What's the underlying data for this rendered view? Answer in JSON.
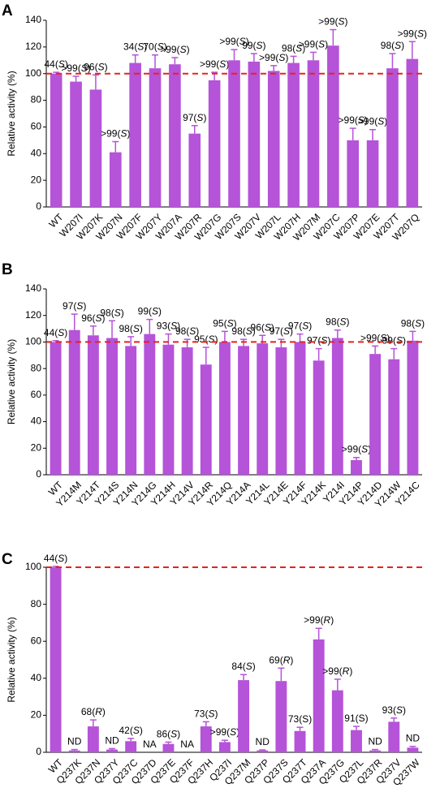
{
  "chart_data": [
    {
      "type": "bar",
      "panel_letter": "A",
      "ylabel": "Relative activity (%)",
      "ylim": [
        0,
        140
      ],
      "yticks": [
        0,
        20,
        40,
        60,
        80,
        100,
        120,
        140
      ],
      "reference_line": 100,
      "bar_color": "#b553d9",
      "reference_color": "#e8221b",
      "categories": [
        "WT",
        "W207I",
        "W207K",
        "W207N",
        "W207F",
        "W207Y",
        "W207A",
        "W207R",
        "W207G",
        "W207S",
        "W207V",
        "W207L",
        "W207H",
        "W207M",
        "W207C",
        "W207P",
        "W207E",
        "W207T",
        "W207Q"
      ],
      "values": [
        100,
        94,
        88,
        41,
        108,
        104,
        107,
        55,
        95,
        110,
        109,
        102,
        108,
        110,
        121,
        50,
        50,
        104,
        111
      ],
      "errors": [
        1,
        4,
        11,
        8,
        6,
        10,
        5,
        6,
        6,
        8,
        6,
        4,
        5,
        6,
        12,
        9,
        8,
        11,
        13
      ],
      "labels": [
        {
          "pre": "44(",
          "ital": "S",
          "post": ")"
        },
        {
          "pre": ">99(",
          "ital": "S",
          "post": ")"
        },
        {
          "pre": "96(",
          "ital": "S",
          "post": ")"
        },
        {
          "pre": ">99(",
          "ital": "S",
          "post": ")"
        },
        {
          "pre": "34(",
          "ital": "S",
          "post": ")"
        },
        {
          "pre": "70(",
          "ital": "S",
          "post": ")"
        },
        {
          "pre": ">99(",
          "ital": "S",
          "post": ")"
        },
        {
          "pre": "97(",
          "ital": "S",
          "post": ")"
        },
        {
          "pre": ">99(",
          "ital": "S",
          "post": ")"
        },
        {
          "pre": ">99(",
          "ital": "S",
          "post": ")"
        },
        {
          "pre": "99(",
          "ital": "S",
          "post": ")"
        },
        {
          "pre": ">99(",
          "ital": "S",
          "post": ")"
        },
        {
          "pre": "98(",
          "ital": "S",
          "post": ")"
        },
        {
          "pre": ">99(",
          "ital": "S",
          "post": ")"
        },
        {
          "pre": ">99(",
          "ital": "S",
          "post": ")"
        },
        {
          "pre": ">99(",
          "ital": "S",
          "post": ")"
        },
        {
          "pre": ">99(",
          "ital": "S",
          "post": ")"
        },
        {
          "pre": "98(",
          "ital": "S",
          "post": ")"
        },
        {
          "pre": ">99(",
          "ital": "S",
          "post": ")"
        }
      ]
    },
    {
      "type": "bar",
      "panel_letter": "B",
      "ylabel": "Relative activity (%)",
      "ylim": [
        0,
        140
      ],
      "yticks": [
        0,
        20,
        40,
        60,
        80,
        100,
        120,
        140
      ],
      "reference_line": 100,
      "bar_color": "#b553d9",
      "reference_color": "#e8221b",
      "categories": [
        "WT",
        "Y214M",
        "Y214T",
        "Y214S",
        "Y214N",
        "Y214G",
        "Y214H",
        "Y214V",
        "Y214R",
        "Y214Q",
        "Y214A",
        "Y214L",
        "Y214E",
        "Y214F",
        "Y214K",
        "Y214I",
        "Y214P",
        "Y214D",
        "Y214W",
        "Y214C"
      ],
      "values": [
        100,
        109,
        105,
        103,
        97,
        106,
        98,
        96,
        83,
        100,
        97,
        99,
        96,
        100,
        86,
        103,
        11,
        91,
        87,
        101
      ],
      "errors": [
        1,
        12,
        7,
        13,
        7,
        11,
        8,
        6,
        13,
        8,
        5,
        6,
        6,
        6,
        9,
        6,
        2,
        6,
        8,
        7
      ],
      "labels": [
        {
          "pre": "44(",
          "ital": "S",
          "post": ")"
        },
        {
          "pre": "97(",
          "ital": "S",
          "post": ")"
        },
        {
          "pre": "96(",
          "ital": "S",
          "post": ")"
        },
        {
          "pre": "98(",
          "ital": "S",
          "post": ")"
        },
        {
          "pre": "98(",
          "ital": "S",
          "post": ")"
        },
        {
          "pre": "99(",
          "ital": "S",
          "post": ")"
        },
        {
          "pre": "93(",
          "ital": "S",
          "post": ")"
        },
        {
          "pre": "98(",
          "ital": "S",
          "post": ")"
        },
        {
          "pre": "95(",
          "ital": "S",
          "post": ")"
        },
        {
          "pre": "95(",
          "ital": "S",
          "post": ")"
        },
        {
          "pre": "98(",
          "ital": "S",
          "post": ")"
        },
        {
          "pre": "96(",
          "ital": "S",
          "post": ")"
        },
        {
          "pre": "97(",
          "ital": "S",
          "post": ")"
        },
        {
          "pre": "97(",
          "ital": "S",
          "post": ")"
        },
        {
          "pre": "97(",
          "ital": "S",
          "post": ")"
        },
        {
          "pre": "98(",
          "ital": "S",
          "post": ")"
        },
        {
          "pre": ">99(",
          "ital": "S",
          "post": ")"
        },
        {
          "pre": ">99(",
          "ital": "S",
          "post": ")"
        },
        {
          "pre": "99(",
          "ital": "S",
          "post": ")"
        },
        {
          "pre": "98(",
          "ital": "S",
          "post": ")"
        }
      ]
    },
    {
      "type": "bar",
      "panel_letter": "C",
      "ylabel": "Relative activity (%)",
      "ylim": [
        0,
        100
      ],
      "yticks": [
        0,
        20,
        40,
        60,
        80,
        100
      ],
      "reference_line": 100,
      "bar_color": "#b553d9",
      "reference_color": "#e8221b",
      "categories": [
        "WT",
        "Q237K",
        "Q237N",
        "Q237Y",
        "Q237C",
        "Q237D",
        "Q237E",
        "Q237F",
        "Q237H",
        "Q237I",
        "Q237M",
        "Q237P",
        "Q237S",
        "Q237T",
        "Q237A",
        "Q237G",
        "Q237L",
        "Q237R",
        "Q237V",
        "Q237W"
      ],
      "values": [
        100,
        1,
        14,
        1.5,
        6,
        0,
        4.5,
        0,
        14,
        5.5,
        39,
        1,
        38.5,
        11.5,
        61,
        33.5,
        12,
        1,
        16.5,
        2.5
      ],
      "errors": [
        0.5,
        0.5,
        3.5,
        0.5,
        1.5,
        0,
        1,
        0,
        2.5,
        1,
        3,
        0.3,
        7,
        2,
        6,
        6,
        2,
        0.5,
        2,
        0.7
      ],
      "labels": [
        {
          "pre": "44(",
          "ital": "S",
          "post": ")"
        },
        {
          "pre": "ND",
          "ital": "",
          "post": ""
        },
        {
          "pre": "68(",
          "ital": "R",
          "post": ")"
        },
        {
          "pre": "ND",
          "ital": "",
          "post": ""
        },
        {
          "pre": "42(",
          "ital": "S",
          "post": ")"
        },
        {
          "pre": "NA",
          "ital": "",
          "post": ""
        },
        {
          "pre": "86(",
          "ital": "S",
          "post": ")"
        },
        {
          "pre": "NA",
          "ital": "",
          "post": ""
        },
        {
          "pre": "73(",
          "ital": "S",
          "post": ")"
        },
        {
          "pre": ">99(",
          "ital": "S",
          "post": ")"
        },
        {
          "pre": "84(",
          "ital": "S",
          "post": ")"
        },
        {
          "pre": "ND",
          "ital": "",
          "post": ""
        },
        {
          "pre": "69(",
          "ital": "R",
          "post": ")"
        },
        {
          "pre": "73(S)",
          "ital": "",
          "post": ""
        },
        {
          "pre": ">99(",
          "ital": "R",
          "post": ")"
        },
        {
          "pre": ">99(",
          "ital": "R",
          "post": ")"
        },
        {
          "pre": "91(S)",
          "ital": "",
          "post": ""
        },
        {
          "pre": "ND",
          "ital": "",
          "post": ""
        },
        {
          "pre": "93(",
          "ital": "S",
          "post": ")"
        },
        {
          "pre": "ND",
          "ital": "",
          "post": ""
        }
      ]
    }
  ]
}
